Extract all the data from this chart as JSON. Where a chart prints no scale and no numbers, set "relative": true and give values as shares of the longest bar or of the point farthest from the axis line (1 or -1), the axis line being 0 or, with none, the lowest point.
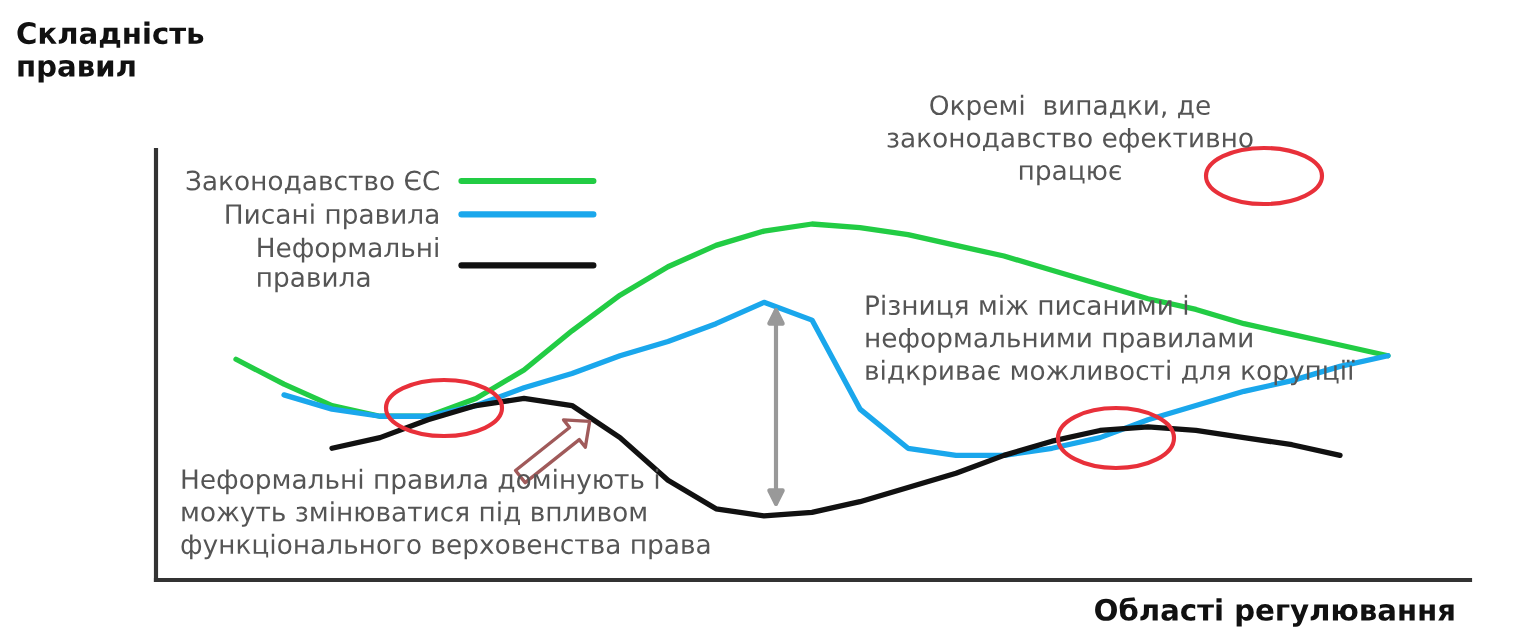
{
  "chart_data": {
    "type": "line",
    "relative": true,
    "grid": false,
    "legend": "top left",
    "ylabel": "Складність\nправил",
    "xlabel": "Області регулювання",
    "categories": [
      null,
      null,
      null,
      null,
      null,
      null,
      null,
      null,
      null,
      null,
      null,
      null,
      null,
      null,
      null,
      null,
      null,
      null,
      null,
      null,
      null,
      null,
      null,
      null,
      null
    ],
    "series": [
      {
        "name": "Законодавство ЄС",
        "color": "#22cc44",
        "values": [
          0.62,
          0.55,
          0.49,
          0.46,
          0.46,
          0.51,
          0.59,
          0.7,
          0.8,
          0.88,
          0.94,
          0.98,
          1,
          0.99,
          0.97,
          0.94,
          0.91,
          0.87,
          0.83,
          0.79,
          0.76,
          0.72,
          0.69,
          0.66,
          0.63
        ]
      },
      {
        "name": "Писані правила",
        "color": "#1aa7ec",
        "values": [
          null,
          0.52,
          0.48,
          0.46,
          0.46,
          0.49,
          0.54,
          0.58,
          0.63,
          0.67,
          0.72,
          0.78,
          0.73,
          0.48,
          0.37,
          0.35,
          0.35,
          0.37,
          0.4,
          0.45,
          0.49,
          0.53,
          0.56,
          0.6,
          0.63
        ]
      },
      {
        "name": "Неформальні\nправила",
        "color": "#111111",
        "values": [
          null,
          null,
          0.37,
          0.4,
          0.45,
          0.49,
          0.51,
          0.49,
          0.4,
          0.28,
          0.2,
          0.18,
          0.19,
          0.22,
          0.26,
          0.3,
          0.35,
          0.39,
          0.42,
          0.43,
          0.42,
          0.4,
          0.38,
          0.35,
          null
        ]
      }
    ],
    "annotations": [
      "Окремі  випадки, де\nзаконодавство ефективно\nпрацює",
      "Різниця між писаними і\nнеформальними правилами\nвідкриває можливості для корупції",
      "Неформальні правила домінують і\nможуть змінюватися під впливом\nфункціонального верховенства права"
    ]
  }
}
